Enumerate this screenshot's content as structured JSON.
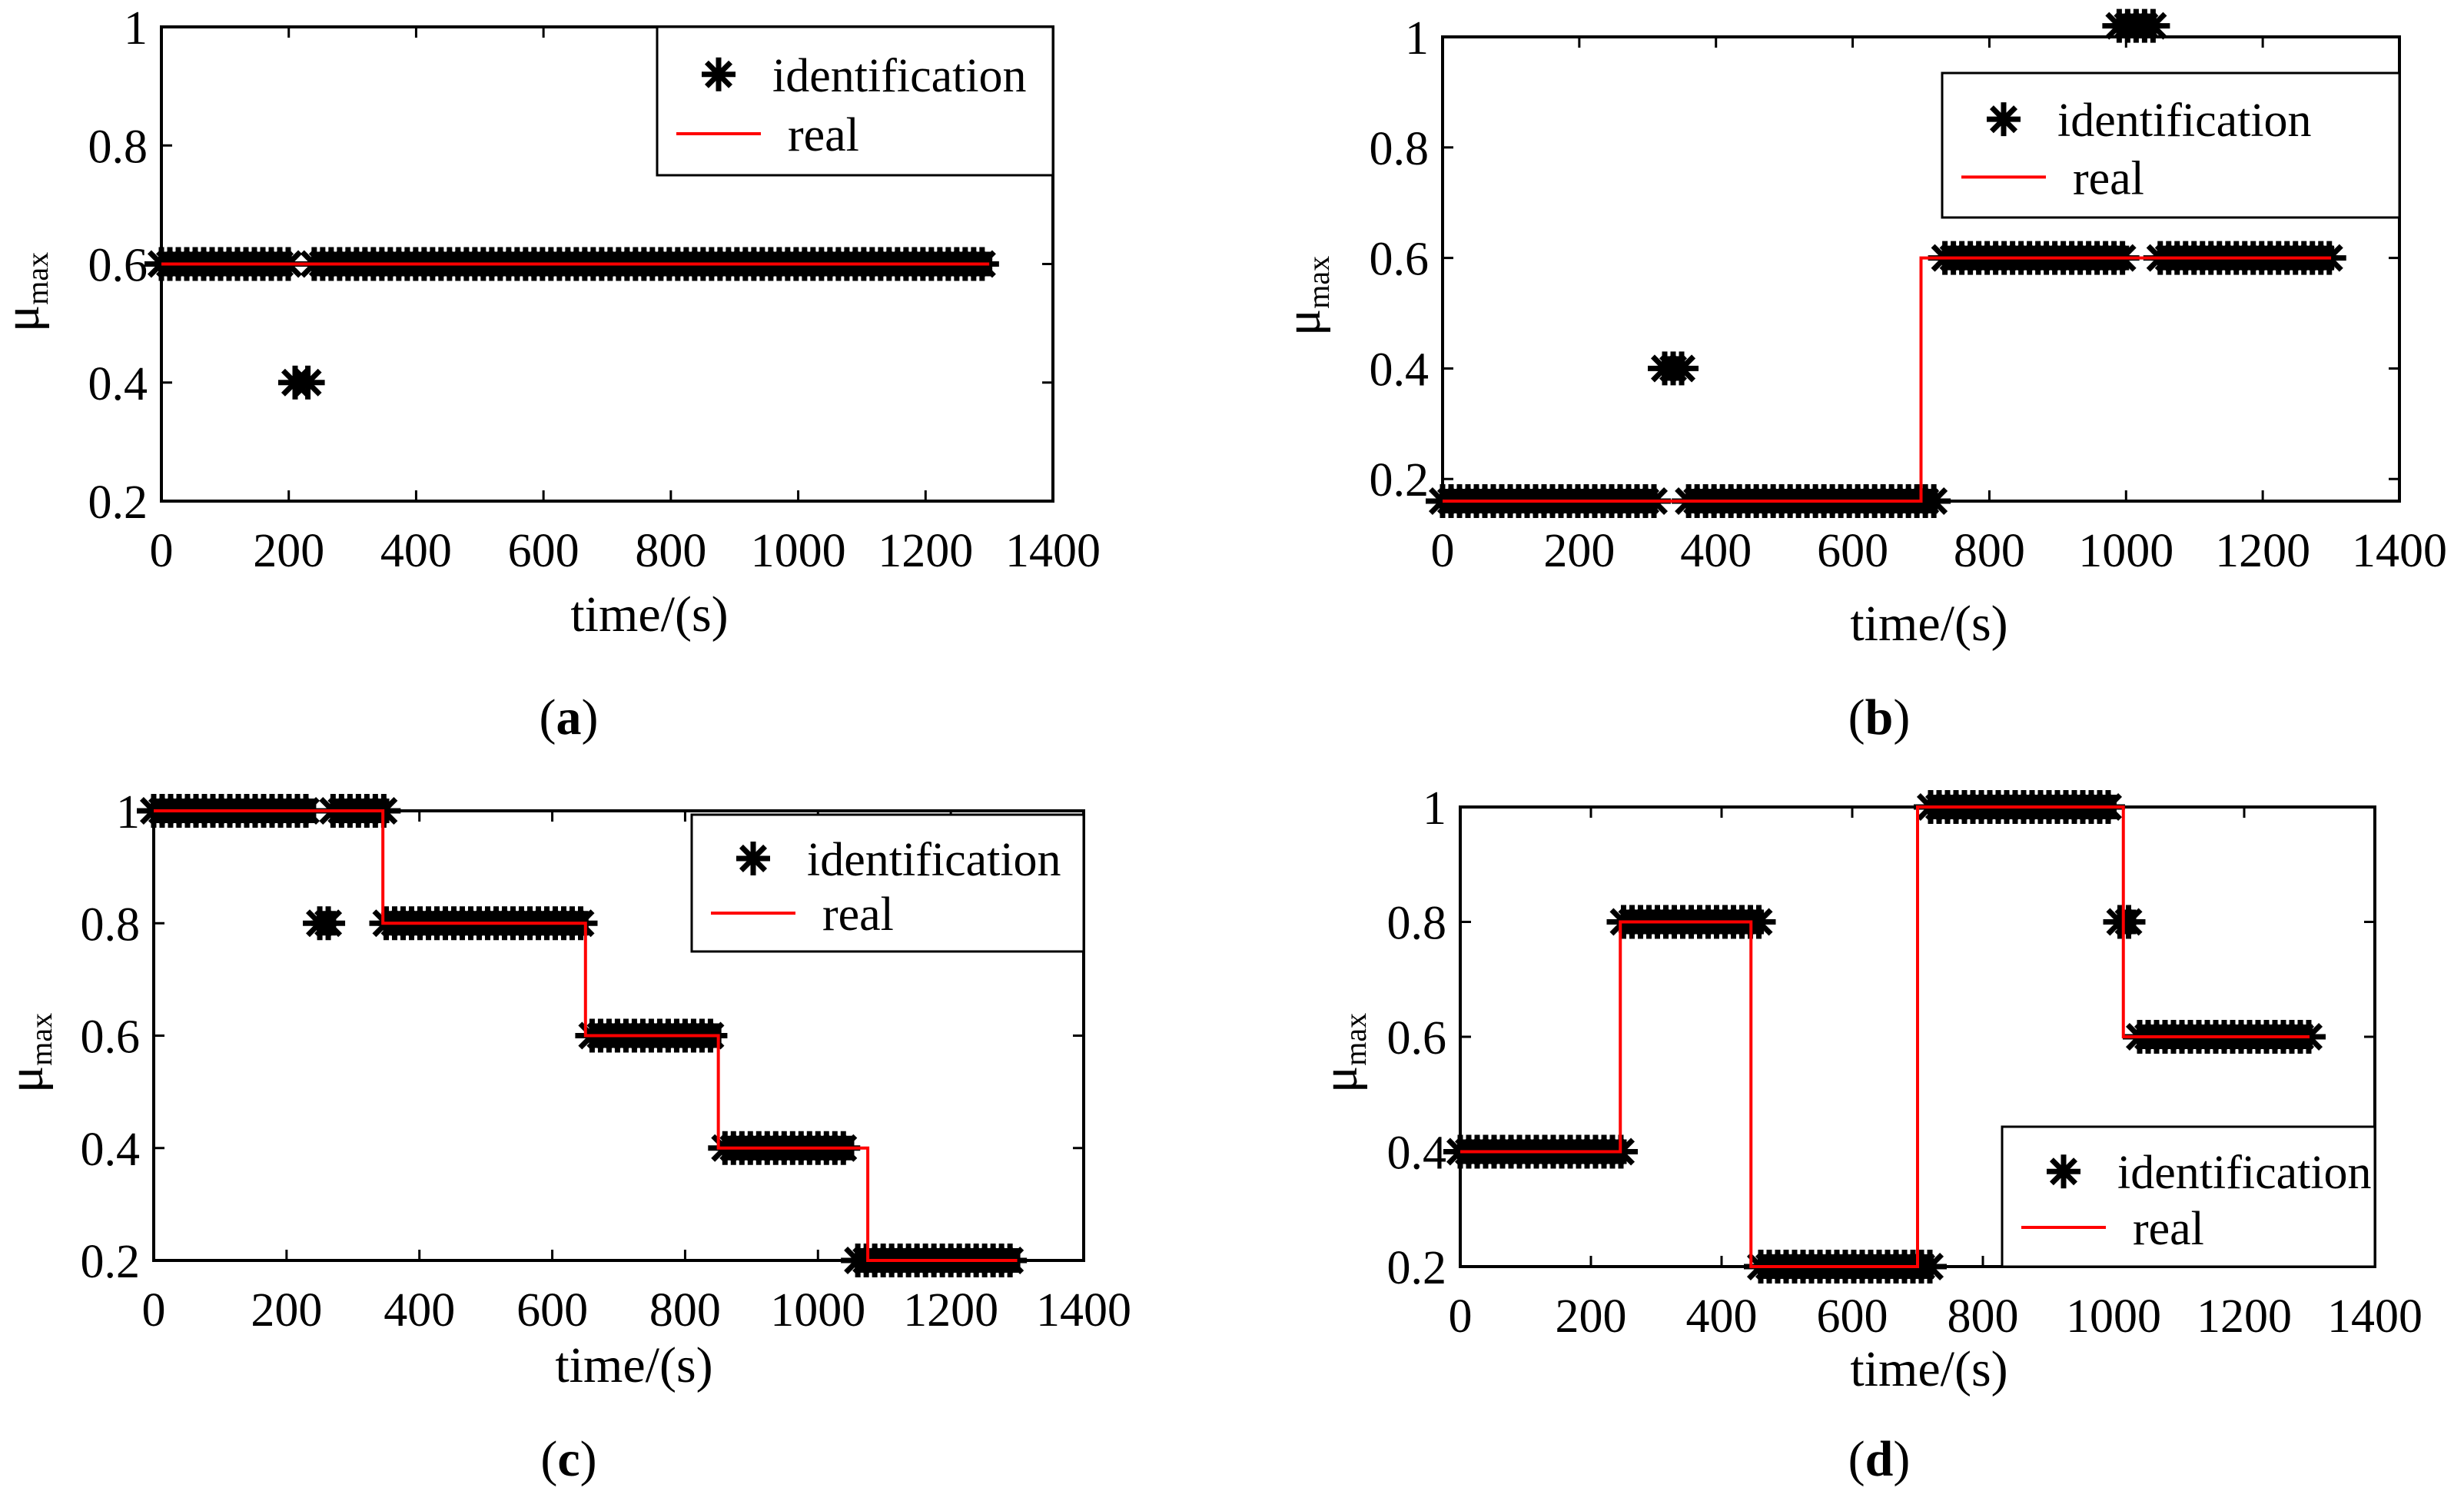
{
  "figure": {
    "panel_labels": [
      "a",
      "b",
      "c",
      "d"
    ],
    "colors": {
      "identification": "#000000",
      "real": "#ff0000",
      "axes": "#000000"
    }
  },
  "chart_data": [
    {
      "type": "line",
      "panel": "a",
      "xlabel": "time/(s)",
      "ylabel_main": "μ",
      "ylabel_sub": "max",
      "xlim": [
        0,
        1400
      ],
      "ylim": [
        0.2,
        1
      ],
      "xticks": [
        0,
        200,
        400,
        600,
        800,
        1000,
        1200,
        1400
      ],
      "xtick_labels": [
        "0",
        "200",
        "400",
        "600",
        "800",
        "1000",
        "1200",
        "1400"
      ],
      "yticks": [
        0.2,
        0.4,
        0.6,
        0.8,
        1
      ],
      "ytick_labels": [
        "0.2",
        "0.4",
        "0.6",
        "0.8",
        "1"
      ],
      "legend": {
        "location": "top-right",
        "entries": [
          "identification",
          "real"
        ]
      },
      "series": [
        {
          "name": "identification",
          "style": "asterisk",
          "segments": [
            {
              "x": [
                0,
                200
              ],
              "y": 0.6
            },
            {
              "x": 210,
              "y": 0.4
            },
            {
              "x": 230,
              "y": 0.4
            },
            {
              "x": [
                240,
                1300
              ],
              "y": 0.6
            }
          ]
        },
        {
          "name": "real",
          "style": "line",
          "points": [
            [
              0,
              0.6
            ],
            [
              1300,
              0.6
            ]
          ]
        }
      ]
    },
    {
      "type": "line",
      "panel": "b",
      "xlabel": "time/(s)",
      "ylabel_main": "μ",
      "ylabel_sub": "max",
      "xlim": [
        0,
        1400
      ],
      "ylim": [
        0.16,
        1
      ],
      "xticks": [
        0,
        200,
        400,
        600,
        800,
        1000,
        1200,
        1400
      ],
      "xtick_labels": [
        "0",
        "200",
        "400",
        "600",
        "800",
        "1000",
        "1200",
        "1400"
      ],
      "yticks": [
        0.2,
        0.4,
        0.6,
        0.8,
        1
      ],
      "ytick_labels": [
        "0.2",
        "0.4",
        "0.6",
        "0.8",
        "1"
      ],
      "legend": {
        "location": "top-right",
        "entries": [
          "identification",
          "real"
        ]
      },
      "series": [
        {
          "name": "identification",
          "style": "asterisk",
          "segments": [
            {
              "x": [
                0,
                310
              ],
              "y": 0.16
            },
            {
              "x": [
                325,
                350
              ],
              "y": 0.4
            },
            {
              "x": [
                360,
                720
              ],
              "y": 0.16
            },
            {
              "x": [
                735,
                1000
              ],
              "y": 0.6
            },
            {
              "x": [
                990,
                1040
              ],
              "y": 1.02
            },
            {
              "x": [
                1050,
                1300
              ],
              "y": 0.6
            }
          ]
        },
        {
          "name": "real",
          "style": "line",
          "points": [
            [
              0,
              0.16
            ],
            [
              700,
              0.16
            ],
            [
              700,
              0.6
            ],
            [
              1300,
              0.6
            ]
          ]
        }
      ]
    },
    {
      "type": "line",
      "panel": "c",
      "xlabel": "time/(s)",
      "ylabel_main": "μ",
      "ylabel_sub": "max",
      "xlim": [
        0,
        1400
      ],
      "ylim": [
        0.2,
        1
      ],
      "xticks": [
        0,
        200,
        400,
        600,
        800,
        1000,
        1200,
        1400
      ],
      "xtick_labels": [
        "0",
        "200",
        "400",
        "600",
        "800",
        "1000",
        "1200",
        "1400"
      ],
      "yticks": [
        0.2,
        0.4,
        0.6,
        0.8,
        1
      ],
      "ytick_labels": [
        "0.2",
        "0.4",
        "0.6",
        "0.8",
        "1"
      ],
      "legend": {
        "location": "top-right",
        "entries": [
          "identification",
          "real"
        ]
      },
      "series": [
        {
          "name": "identification",
          "style": "asterisk",
          "segments": [
            {
              "x": [
                0,
                240
              ],
              "y": 1
            },
            {
              "x": [
                250,
                270
              ],
              "y": 0.8
            },
            {
              "x": [
                270,
                350
              ],
              "y": 1
            },
            {
              "x": [
                350,
                650
              ],
              "y": 0.8
            },
            {
              "x": [
                660,
                850
              ],
              "y": 0.6
            },
            {
              "x": [
                860,
                1050
              ],
              "y": 0.4
            },
            {
              "x": [
                1060,
                1300
              ],
              "y": 0.2
            }
          ]
        },
        {
          "name": "real",
          "style": "line",
          "points": [
            [
              0,
              1
            ],
            [
              345,
              1
            ],
            [
              345,
              0.8
            ],
            [
              650,
              0.8
            ],
            [
              650,
              0.6
            ],
            [
              850,
              0.6
            ],
            [
              850,
              0.4
            ],
            [
              1075,
              0.4
            ],
            [
              1075,
              0.2
            ],
            [
              1300,
              0.2
            ]
          ]
        }
      ]
    },
    {
      "type": "line",
      "panel": "d",
      "xlabel": "time/(s)",
      "ylabel_main": "μ",
      "ylabel_sub": "max",
      "xlim": [
        0,
        1400
      ],
      "ylim": [
        0.2,
        1
      ],
      "xticks": [
        0,
        200,
        400,
        600,
        800,
        1000,
        1200,
        1400
      ],
      "xtick_labels": [
        "0",
        "200",
        "400",
        "600",
        "800",
        "1000",
        "1200",
        "1400"
      ],
      "yticks": [
        0.2,
        0.4,
        0.6,
        0.8,
        1
      ],
      "ytick_labels": [
        "0.2",
        "0.4",
        "0.6",
        "0.8",
        "1"
      ],
      "legend": {
        "location": "bottom-right",
        "entries": [
          "identification",
          "real"
        ]
      },
      "series": [
        {
          "name": "identification",
          "style": "asterisk",
          "segments": [
            {
              "x": [
                0,
                250
              ],
              "y": 0.4
            },
            {
              "x": [
                250,
                460
              ],
              "y": 0.8
            },
            {
              "x": [
                460,
                720
              ],
              "y": 0.2
            },
            {
              "x": [
                720,
                1000
              ],
              "y": 1
            },
            {
              "x": [
                1010,
                1030
              ],
              "y": 0.8
            },
            {
              "x": [
                1040,
                1300
              ],
              "y": 0.6
            }
          ]
        },
        {
          "name": "real",
          "style": "line",
          "points": [
            [
              0,
              0.4
            ],
            [
              245,
              0.4
            ],
            [
              245,
              0.8
            ],
            [
              445,
              0.8
            ],
            [
              445,
              0.2
            ],
            [
              700,
              0.2
            ],
            [
              700,
              1
            ],
            [
              1015,
              1
            ],
            [
              1015,
              0.6
            ],
            [
              1300,
              0.6
            ]
          ]
        }
      ]
    }
  ]
}
